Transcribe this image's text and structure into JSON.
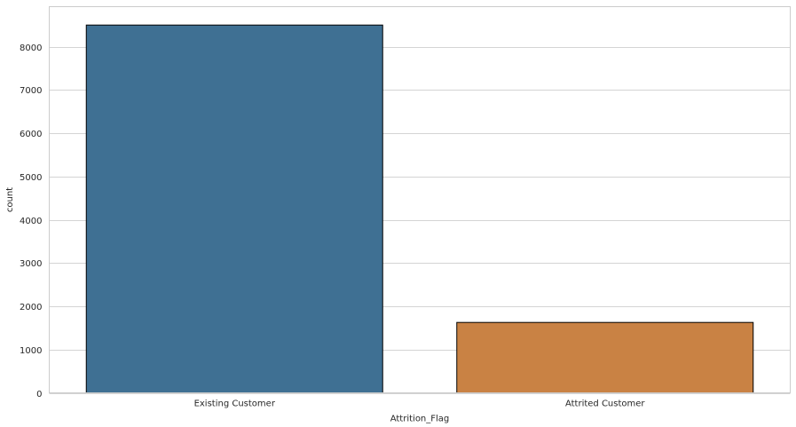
{
  "chart_data": {
    "type": "bar",
    "categories": [
      "Existing Customer",
      "Attrited Customer"
    ],
    "values": [
      8500,
      1627
    ],
    "title": "",
    "xlabel": "Attrition_Flag",
    "ylabel": "count",
    "ylim": [
      0,
      8925
    ],
    "yticks": [
      0,
      1000,
      2000,
      3000,
      4000,
      5000,
      6000,
      7000,
      8000
    ],
    "grid": true,
    "colors": [
      "#3f7093",
      "#c98244"
    ],
    "edge_color": "#000000",
    "grid_color": "#d4d4d4",
    "frame_color": "#cccccc"
  }
}
